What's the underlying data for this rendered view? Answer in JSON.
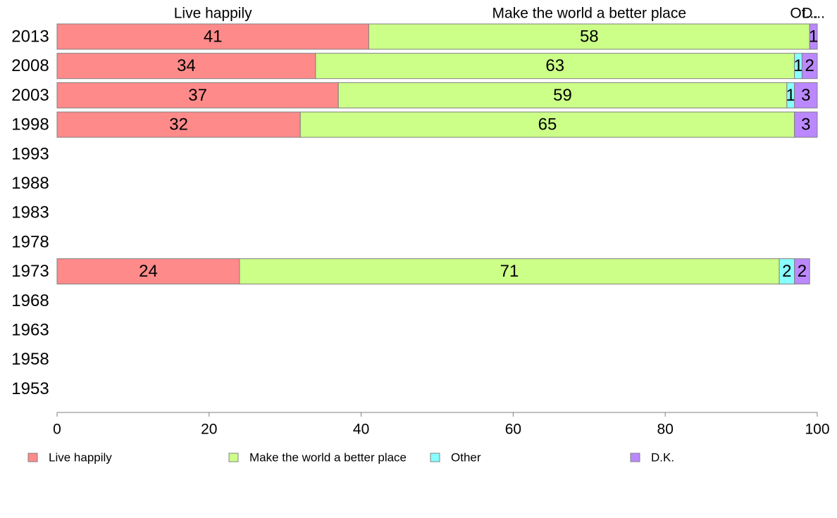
{
  "chart_data": {
    "type": "bar",
    "orientation": "horizontal",
    "stacked": true,
    "categories": [
      "2013",
      "2008",
      "2003",
      "1998",
      "1993",
      "1988",
      "1983",
      "1978",
      "1973",
      "1968",
      "1963",
      "1958",
      "1953"
    ],
    "series": [
      {
        "name": "Live happily",
        "color": "#ff8a8a",
        "values": [
          41,
          34,
          37,
          32,
          null,
          null,
          null,
          null,
          24,
          null,
          null,
          null,
          null
        ]
      },
      {
        "name": "Make the world a better place",
        "color": "#ccff88",
        "values": [
          58,
          63,
          59,
          65,
          null,
          null,
          null,
          null,
          71,
          null,
          null,
          null,
          null
        ]
      },
      {
        "name": "Other",
        "color": "#88ffff",
        "values": [
          0,
          1,
          1,
          0,
          null,
          null,
          null,
          null,
          2,
          null,
          null,
          null,
          null
        ]
      },
      {
        "name": "D.K.",
        "color": "#bb88ff",
        "values": [
          1,
          2,
          3,
          3,
          null,
          null,
          null,
          null,
          2,
          null,
          null,
          null,
          null
        ]
      }
    ],
    "column_headers": [
      "Live happily",
      "Make the world a better place",
      "Ot...",
      "D..."
    ],
    "xlim": [
      0,
      100
    ],
    "xticks": [
      0,
      20,
      40,
      60,
      80,
      100
    ],
    "xlabel": "",
    "ylabel": "",
    "grid": false,
    "legend_position": "bottom"
  }
}
